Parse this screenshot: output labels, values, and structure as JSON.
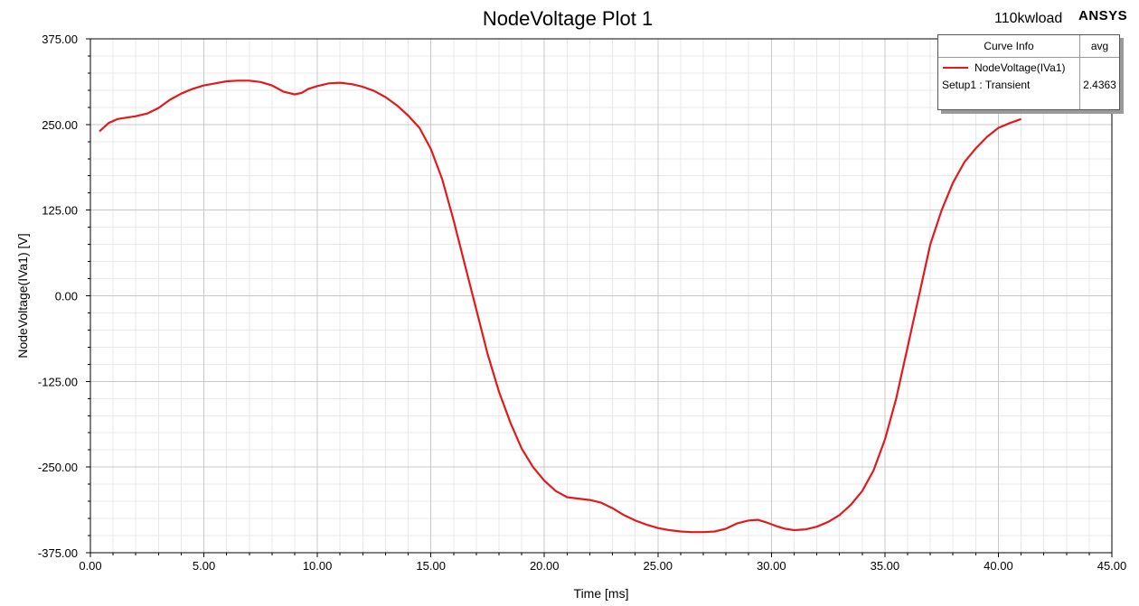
{
  "header": {
    "title": "NodeVoltage Plot 1",
    "design": "110kwload",
    "brand": "ANSYS"
  },
  "legend": {
    "header_label": "Curve Info",
    "header_stat": "avg",
    "curve_name": "NodeVoltage(IVa1)",
    "setup_label": "Setup1 : Transient",
    "avg_value": "2.4363",
    "line_color": "#e31a1c"
  },
  "colors": {
    "series": "#e31a1c",
    "major_grid": "#c8c8c8",
    "minor_grid": "#e8e8e8",
    "axis": "#000000"
  },
  "chart_data": {
    "type": "line",
    "title": "NodeVoltage Plot 1",
    "xlabel": "Time [ms]",
    "ylabel": "NodeVoltage(IVa1) [V]",
    "xlim": [
      0,
      45
    ],
    "ylim": [
      -375,
      375
    ],
    "xticks": [
      "0.00",
      "5.00",
      "10.00",
      "15.00",
      "20.00",
      "25.00",
      "30.00",
      "35.00",
      "40.00",
      "45.00"
    ],
    "yticks": [
      "375.00",
      "250.00",
      "125.00",
      "0.00",
      "-125.00",
      "-250.00",
      "-375.00"
    ],
    "grid": true,
    "legend_position": "top-right",
    "series": [
      {
        "name": "NodeVoltage(IVa1)",
        "x": [
          0.4,
          0.8,
          1.2,
          1.6,
          2.0,
          2.5,
          3.0,
          3.5,
          4.0,
          4.5,
          5.0,
          5.5,
          6.0,
          6.5,
          7.0,
          7.5,
          8.0,
          8.5,
          9.0,
          9.3,
          9.6,
          10.0,
          10.5,
          11.0,
          11.5,
          12.0,
          12.5,
          13.0,
          13.5,
          14.0,
          14.5,
          15.0,
          15.5,
          16.0,
          16.5,
          17.0,
          17.5,
          18.0,
          18.5,
          19.0,
          19.5,
          20.0,
          20.5,
          21.0,
          21.5,
          22.0,
          22.5,
          23.0,
          23.5,
          24.0,
          24.5,
          25.0,
          25.5,
          26.0,
          26.5,
          27.0,
          27.5,
          28.0,
          28.5,
          29.0,
          29.4,
          29.8,
          30.2,
          30.6,
          31.0,
          31.5,
          32.0,
          32.5,
          33.0,
          33.5,
          34.0,
          34.5,
          35.0,
          35.5,
          36.0,
          36.5,
          37.0,
          37.5,
          38.0,
          38.5,
          39.0,
          39.5,
          40.0,
          40.5,
          41.0
        ],
        "values": [
          240,
          252,
          258,
          260,
          262,
          266,
          274,
          286,
          295,
          302,
          307,
          310,
          313,
          314,
          314,
          312,
          307,
          298,
          294,
          296,
          302,
          306,
          310,
          311,
          309,
          305,
          299,
          290,
          278,
          263,
          245,
          214,
          170,
          110,
          45,
          -20,
          -85,
          -140,
          -185,
          -223,
          -250,
          -270,
          -285,
          -294,
          -296,
          -298,
          -302,
          -310,
          -320,
          -328,
          -334,
          -339,
          -342,
          -344,
          -345,
          -345,
          -344,
          -340,
          -332,
          -328,
          -327,
          -331,
          -336,
          -340,
          -342,
          -341,
          -337,
          -330,
          -320,
          -305,
          -285,
          -255,
          -210,
          -150,
          -75,
          0,
          75,
          125,
          165,
          195,
          215,
          232,
          245,
          252,
          258
        ]
      }
    ]
  }
}
